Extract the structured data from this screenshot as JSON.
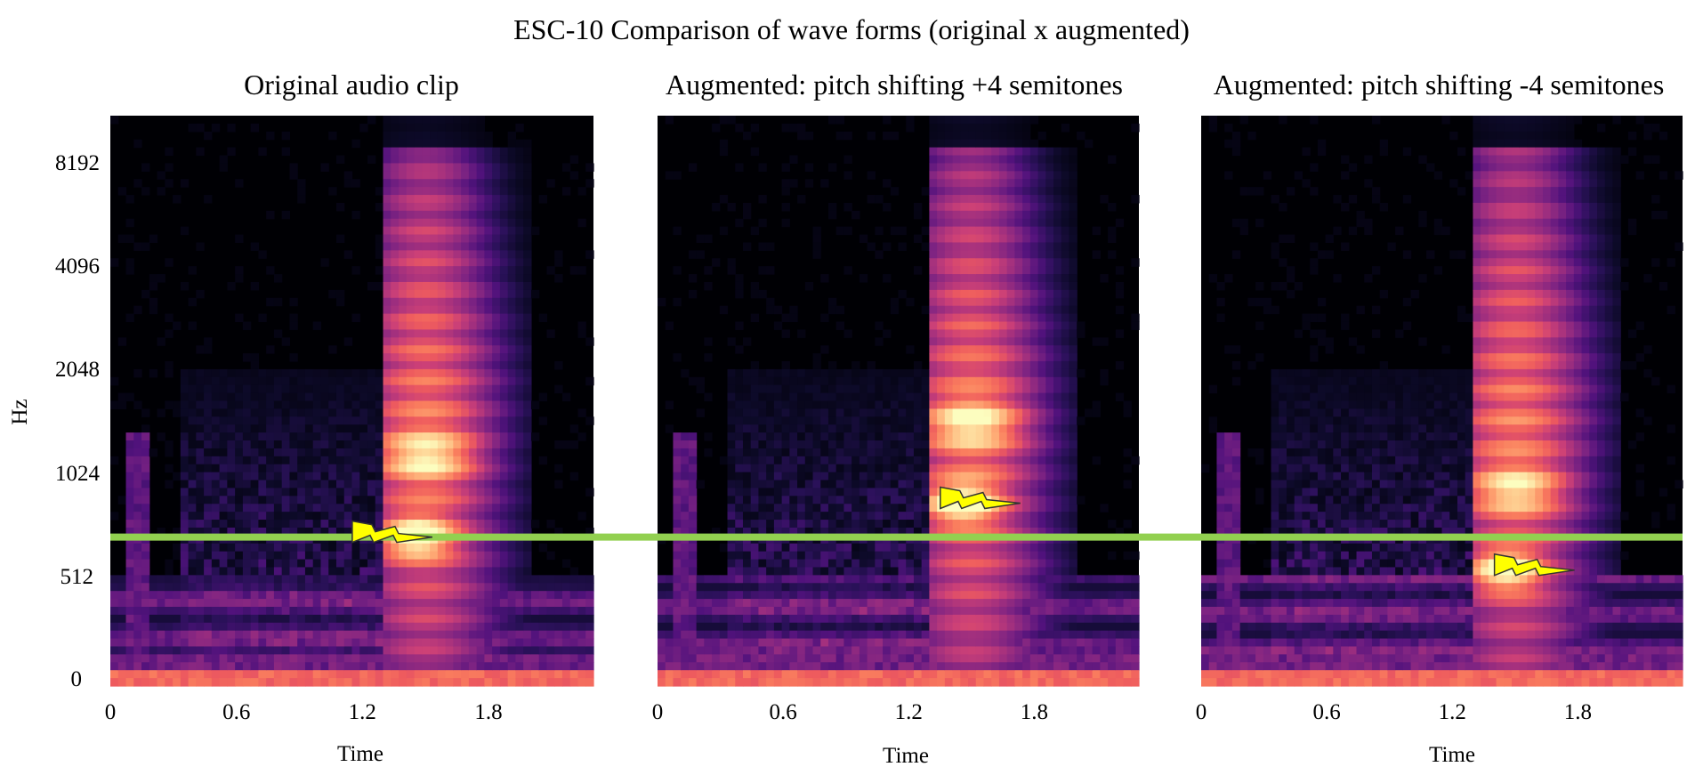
{
  "figure": {
    "title": "ESC-10 Comparison of wave forms (original x augmented)"
  },
  "colors": {
    "background": "#ffffff",
    "colormap": [
      "#000004",
      "#0d0a29",
      "#2a1159",
      "#51127c",
      "#7c2382",
      "#a3307e",
      "#cc4077",
      "#ee5b5e",
      "#fa7f5e",
      "#feac76",
      "#fed395",
      "#fcfdbf"
    ],
    "reference_line": "#92d050",
    "marker_fill": "#ffff00",
    "marker_stroke": "#333333"
  },
  "chart_data": [
    {
      "type": "heatmap",
      "title": "Original audio clip",
      "xlabel": "Time",
      "ylabel": "Hz",
      "xticks": [
        "0",
        "0.6",
        "1.2",
        "1.8"
      ],
      "xtick_values": [
        0,
        0.6,
        1.2,
        1.8
      ],
      "yticks": [
        "0",
        "512",
        "1024",
        "2048",
        "4096",
        "8192"
      ],
      "xlim": [
        0,
        2.3
      ],
      "y_scale": "symlog",
      "onset_time": 1.3,
      "peak_hz": 700,
      "reference_line_hz": 700,
      "marker": {
        "shape": "lightning-bolt",
        "time": 1.3,
        "hz": 700
      }
    },
    {
      "type": "heatmap",
      "title": "Augmented: pitch shifting +4 semitones",
      "xlabel": "Time",
      "ylabel": "",
      "xticks": [
        "0",
        "0.6",
        "1.2",
        "1.8"
      ],
      "xtick_values": [
        0,
        0.6,
        1.2,
        1.8
      ],
      "yticks": [],
      "xlim": [
        0,
        2.3
      ],
      "y_scale": "symlog",
      "onset_time": 1.3,
      "peak_hz": 880,
      "reference_line_hz": 700,
      "marker": {
        "shape": "lightning-bolt",
        "time": 1.5,
        "hz": 880
      }
    },
    {
      "type": "heatmap",
      "title": "Augmented: pitch shifting -4 semitones",
      "xlabel": "Time",
      "ylabel": "",
      "xticks": [
        "0",
        "0.6",
        "1.2",
        "1.8"
      ],
      "xtick_values": [
        0,
        0.6,
        1.2,
        1.8
      ],
      "yticks": [],
      "xlim": [
        0,
        2.3
      ],
      "y_scale": "symlog",
      "onset_time": 1.3,
      "peak_hz": 560,
      "reference_line_hz": 700,
      "marker": {
        "shape": "lightning-bolt",
        "time": 1.55,
        "hz": 560
      }
    }
  ]
}
